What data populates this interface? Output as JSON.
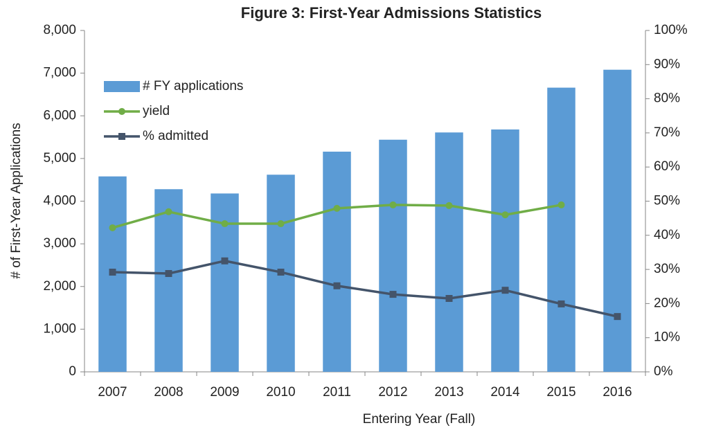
{
  "chart_data": {
    "type": "bar",
    "title": "Figure 3: First-Year Admissions Statistics",
    "x_label": "Entering Year (Fall)",
    "y_label": "# of First-Year Applications",
    "categories": [
      "2007",
      "2008",
      "2009",
      "2010",
      "2011",
      "2012",
      "2013",
      "2014",
      "2015",
      "2016"
    ],
    "series": [
      {
        "name": "# FY applications",
        "type": "bar",
        "color": "#5b9bd5",
        "values": [
          4580,
          4280,
          4180,
          4620,
          5160,
          5440,
          5610,
          5680,
          6660,
          7080
        ]
      },
      {
        "name": "yield",
        "type": "line",
        "marker": "circle",
        "color": "#70ad47",
        "axis": "y2",
        "values": [
          42.2,
          46.9,
          43.4,
          43.4,
          47.9,
          48.9,
          48.7,
          46.0,
          48.9,
          null
        ]
      },
      {
        "name": "% admitted",
        "type": "line",
        "marker": "square",
        "color": "#44546a",
        "axis": "y2",
        "values": [
          29.2,
          28.8,
          32.5,
          29.2,
          25.2,
          22.7,
          21.5,
          23.9,
          19.9,
          16.2
        ]
      }
    ],
    "ylim": [
      0,
      8000
    ],
    "yticks": [
      0,
      {
        "value": 1000,
        "label": "1,000"
      },
      {
        "value": 2000,
        "label": "2,000"
      },
      {
        "value": 3000,
        "label": "3,000"
      },
      {
        "value": 4000,
        "label": "4,000"
      },
      {
        "value": 5000,
        "label": "5,000"
      },
      {
        "value": 6000,
        "label": "6,000"
      },
      {
        "value": 7000,
        "label": "7,000"
      },
      {
        "value": 8000,
        "label": "8,000"
      }
    ],
    "y2lim": [
      0,
      100
    ],
    "y2ticks": [
      {
        "value": 0,
        "label": "0%"
      },
      {
        "value": 10,
        "label": "10%"
      },
      {
        "value": 20,
        "label": "20%"
      },
      {
        "value": 30,
        "label": "30%"
      },
      {
        "value": 40,
        "label": "40%"
      },
      {
        "value": 50,
        "label": "50%"
      },
      {
        "value": 60,
        "label": "60%"
      },
      {
        "value": 70,
        "label": "70%"
      },
      {
        "value": 80,
        "label": "80%"
      },
      {
        "value": 90,
        "label": "90%"
      },
      {
        "value": 100,
        "label": "100%"
      }
    ]
  }
}
